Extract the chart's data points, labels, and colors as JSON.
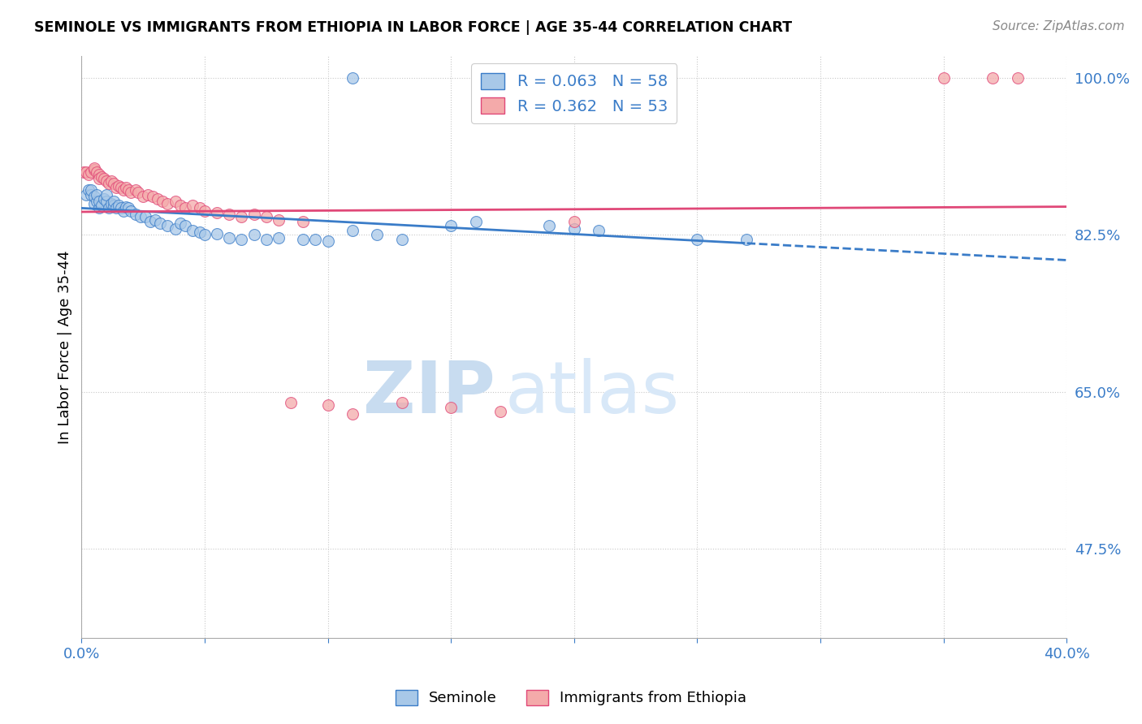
{
  "title": "SEMINOLE VS IMMIGRANTS FROM ETHIOPIA IN LABOR FORCE | AGE 35-44 CORRELATION CHART",
  "source": "Source: ZipAtlas.com",
  "ylabel": "In Labor Force | Age 35-44",
  "xlim": [
    0.0,
    0.4
  ],
  "ylim": [
    0.375,
    1.025
  ],
  "xticks": [
    0.0,
    0.05,
    0.1,
    0.15,
    0.2,
    0.25,
    0.3,
    0.35,
    0.4
  ],
  "yticks_right": [
    1.0,
    0.825,
    0.65,
    0.475
  ],
  "yticklabels_right": [
    "100.0%",
    "82.5%",
    "65.0%",
    "47.5%"
  ],
  "seminole_R": 0.063,
  "seminole_N": 58,
  "ethiopia_R": 0.362,
  "ethiopia_N": 53,
  "seminole_color": "#A8C8E8",
  "ethiopia_color": "#F4AAAA",
  "seminole_line_color": "#3A7CC8",
  "ethiopia_line_color": "#E04878",
  "watermark_zip": "ZIP",
  "watermark_atlas": "atlas",
  "seminole_scatter_x": [
    0.002,
    0.003,
    0.004,
    0.004,
    0.005,
    0.005,
    0.006,
    0.006,
    0.007,
    0.007,
    0.008,
    0.009,
    0.01,
    0.01,
    0.011,
    0.012,
    0.013,
    0.013,
    0.014,
    0.015,
    0.016,
    0.017,
    0.018,
    0.019,
    0.02,
    0.022,
    0.024,
    0.026,
    0.028,
    0.03,
    0.032,
    0.035,
    0.038,
    0.04,
    0.042,
    0.045,
    0.048,
    0.05,
    0.055,
    0.06,
    0.065,
    0.07,
    0.075,
    0.08,
    0.09,
    0.095,
    0.1,
    0.11,
    0.12,
    0.13,
    0.15,
    0.16,
    0.19,
    0.2,
    0.21,
    0.25,
    0.27,
    0.11
  ],
  "seminole_scatter_y": [
    0.87,
    0.875,
    0.87,
    0.875,
    0.86,
    0.868,
    0.862,
    0.87,
    0.855,
    0.862,
    0.858,
    0.865,
    0.862,
    0.87,
    0.855,
    0.86,
    0.858,
    0.862,
    0.855,
    0.858,
    0.855,
    0.852,
    0.856,
    0.855,
    0.852,
    0.848,
    0.845,
    0.845,
    0.84,
    0.842,
    0.838,
    0.835,
    0.832,
    0.838,
    0.835,
    0.83,
    0.828,
    0.825,
    0.826,
    0.822,
    0.82,
    0.825,
    0.82,
    0.822,
    0.82,
    0.82,
    0.818,
    0.83,
    0.825,
    0.82,
    0.835,
    0.84,
    0.835,
    0.832,
    0.83,
    0.82,
    0.82,
    1.0
  ],
  "ethiopia_scatter_x": [
    0.001,
    0.002,
    0.003,
    0.004,
    0.005,
    0.005,
    0.006,
    0.007,
    0.007,
    0.008,
    0.009,
    0.01,
    0.011,
    0.012,
    0.013,
    0.014,
    0.015,
    0.016,
    0.017,
    0.018,
    0.019,
    0.02,
    0.022,
    0.023,
    0.025,
    0.027,
    0.029,
    0.031,
    0.033,
    0.035,
    0.038,
    0.04,
    0.042,
    0.045,
    0.048,
    0.05,
    0.055,
    0.06,
    0.065,
    0.07,
    0.075,
    0.08,
    0.085,
    0.09,
    0.1,
    0.11,
    0.13,
    0.15,
    0.17,
    0.2,
    0.35,
    0.37,
    0.38
  ],
  "ethiopia_scatter_y": [
    0.895,
    0.895,
    0.892,
    0.895,
    0.898,
    0.9,
    0.895,
    0.892,
    0.888,
    0.89,
    0.888,
    0.885,
    0.882,
    0.885,
    0.882,
    0.878,
    0.88,
    0.878,
    0.875,
    0.878,
    0.875,
    0.872,
    0.875,
    0.872,
    0.868,
    0.87,
    0.868,
    0.865,
    0.862,
    0.86,
    0.862,
    0.858,
    0.855,
    0.858,
    0.855,
    0.852,
    0.85,
    0.848,
    0.845,
    0.848,
    0.845,
    0.842,
    0.638,
    0.84,
    0.635,
    0.625,
    0.638,
    0.632,
    0.628,
    0.84,
    1.0,
    1.0,
    1.0
  ]
}
